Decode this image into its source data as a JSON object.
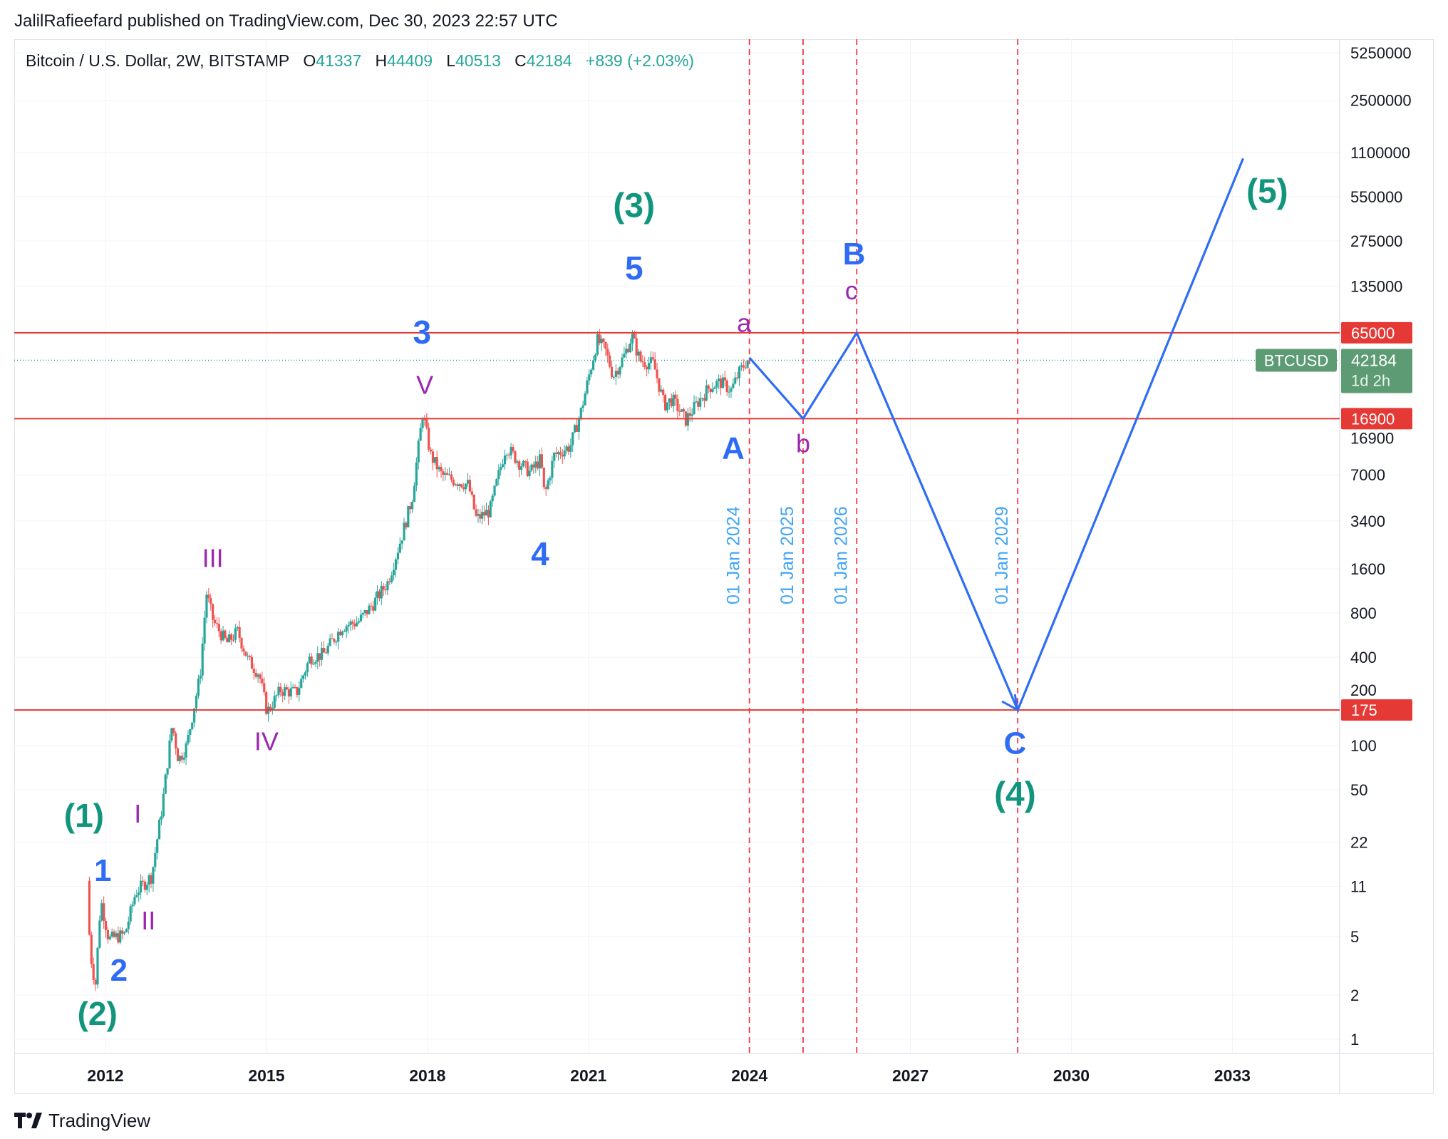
{
  "header": {
    "author_line": "JalilRafieefard published on TradingView.com, Dec 30, 2023 22:57 UTC",
    "symbol": "Bitcoin / U.S. Dollar, 2W, BITSTAMP",
    "open_label": "O",
    "open_value": "41337",
    "high_label": "H",
    "high_value": "44409",
    "low_label": "L",
    "low_value": "40513",
    "close_label": "C",
    "close_value": "42184",
    "change": "+839 (+2.03%)"
  },
  "footer": {
    "brand": "TradingView"
  },
  "colors": {
    "bull": "#26a69a",
    "bear": "#ef5350",
    "blue": "#2f6cf5",
    "green": "#11957d",
    "purple": "#9c27b0",
    "red_line": "#e53935",
    "vline": "#f23645",
    "date_label": "#42a5f5"
  },
  "chart_data": {
    "type": "candlestick",
    "yscale": "log",
    "ylim": [
      0.8,
      6500000
    ],
    "xlim": [
      2010.3,
      2035.0
    ],
    "x_ticks": [
      {
        "x": 2012,
        "label": "2012"
      },
      {
        "x": 2015,
        "label": "2015"
      },
      {
        "x": 2018,
        "label": "2018"
      },
      {
        "x": 2021,
        "label": "2021"
      },
      {
        "x": 2024,
        "label": "2024"
      },
      {
        "x": 2027,
        "label": "2027"
      },
      {
        "x": 2030,
        "label": "2030"
      },
      {
        "x": 2033,
        "label": "2033"
      }
    ],
    "y_ticks": [
      {
        "v": 5250000,
        "label": "5250000"
      },
      {
        "v": 2500000,
        "label": "2500000"
      },
      {
        "v": 1100000,
        "label": "1100000"
      },
      {
        "v": 550000,
        "label": "550000"
      },
      {
        "v": 275000,
        "label": "275000"
      },
      {
        "v": 135000,
        "label": "135000"
      },
      {
        "v": 7000,
        "label": "7000"
      },
      {
        "v": 3400,
        "label": "3400"
      },
      {
        "v": 1600,
        "label": "1600"
      },
      {
        "v": 800,
        "label": "800"
      },
      {
        "v": 400,
        "label": "400"
      },
      {
        "v": 100,
        "label": "100"
      },
      {
        "v": 50,
        "label": "50"
      },
      {
        "v": 22,
        "label": "22"
      },
      {
        "v": 11,
        "label": "11"
      },
      {
        "v": 5,
        "label": "5"
      },
      {
        "v": 2,
        "label": "2"
      },
      {
        "v": 1,
        "label": "1"
      }
    ],
    "price_anchors": [
      [
        2011.7,
        12
      ],
      [
        2011.75,
        4
      ],
      [
        2011.85,
        2.3
      ],
      [
        2011.95,
        9
      ],
      [
        2012.1,
        4.8
      ],
      [
        2012.4,
        5.2
      ],
      [
        2012.6,
        10
      ],
      [
        2012.9,
        13
      ],
      [
        2013.1,
        40
      ],
      [
        2013.28,
        140
      ],
      [
        2013.4,
        80
      ],
      [
        2013.55,
        100
      ],
      [
        2013.8,
        300
      ],
      [
        2013.92,
        1100
      ],
      [
        2014.05,
        700
      ],
      [
        2014.3,
        500
      ],
      [
        2014.5,
        600
      ],
      [
        2014.7,
        380
      ],
      [
        2014.9,
        310
      ],
      [
        2015.05,
        170
      ],
      [
        2015.3,
        240
      ],
      [
        2015.6,
        230
      ],
      [
        2015.85,
        400
      ],
      [
        2016.1,
        420
      ],
      [
        2016.45,
        650
      ],
      [
        2016.75,
        700
      ],
      [
        2017.0,
        900
      ],
      [
        2017.3,
        1300
      ],
      [
        2017.55,
        2600
      ],
      [
        2017.75,
        4800
      ],
      [
        2017.95,
        18500
      ],
      [
        2018.1,
        9500
      ],
      [
        2018.3,
        7000
      ],
      [
        2018.5,
        6500
      ],
      [
        2018.8,
        6000
      ],
      [
        2018.95,
        3500
      ],
      [
        2019.2,
        4000
      ],
      [
        2019.5,
        11000
      ],
      [
        2019.75,
        8500
      ],
      [
        2019.95,
        7300
      ],
      [
        2020.15,
        9000
      ],
      [
        2020.22,
        5000
      ],
      [
        2020.4,
        9500
      ],
      [
        2020.7,
        11000
      ],
      [
        2020.9,
        19000
      ],
      [
        2021.1,
        40000
      ],
      [
        2021.2,
        58000
      ],
      [
        2021.35,
        50000
      ],
      [
        2021.5,
        33000
      ],
      [
        2021.7,
        45000
      ],
      [
        2021.85,
        62000
      ],
      [
        2022.0,
        42000
      ],
      [
        2022.25,
        40000
      ],
      [
        2022.45,
        21000
      ],
      [
        2022.6,
        23000
      ],
      [
        2022.85,
        16500
      ],
      [
        2023.1,
        22500
      ],
      [
        2023.3,
        28000
      ],
      [
        2023.5,
        30000
      ],
      [
        2023.7,
        26500
      ],
      [
        2023.85,
        35000
      ],
      [
        2023.99,
        42184
      ]
    ],
    "horizontal_levels": [
      {
        "value": 65000,
        "label": "65000"
      },
      {
        "value": 16900,
        "label": "16900"
      },
      {
        "value": 175,
        "label": "175"
      }
    ],
    "current_price": {
      "symbol": "BTCUSD",
      "value": "42184",
      "timer": "1d 2h"
    },
    "hidden_axis_labels": [
      {
        "v": 12500,
        "label": "16900"
      },
      {
        "v": 240,
        "label": "200"
      }
    ],
    "vertical_markers": [
      {
        "x": 2024.0,
        "label": "01 Jan 2024"
      },
      {
        "x": 2025.0,
        "label": "01 Jan 2025"
      },
      {
        "x": 2026.0,
        "label": "01 Jan 2026"
      },
      {
        "x": 2029.0,
        "label": "01 Jan 2029"
      }
    ],
    "projection_path": [
      [
        2024.0,
        44000
      ],
      [
        2025.0,
        16900
      ],
      [
        2026.0,
        65000
      ],
      [
        2029.0,
        175
      ],
      [
        2033.2,
        1000000
      ]
    ],
    "wave_labels": [
      {
        "text": "(1)",
        "x": 2011.6,
        "v": 28,
        "color": "green",
        "size": 46
      },
      {
        "text": "1",
        "x": 2011.95,
        "v": 12,
        "color": "blue",
        "size": 44
      },
      {
        "text": "2",
        "x": 2012.25,
        "v": 2.5,
        "color": "blue",
        "size": 44
      },
      {
        "text": "(2)",
        "x": 2011.85,
        "v": 1.25,
        "color": "green",
        "size": 46
      },
      {
        "text": "I",
        "x": 2012.6,
        "v": 30,
        "color": "purple",
        "size": 36
      },
      {
        "text": "II",
        "x": 2012.8,
        "v": 5.6,
        "color": "purple",
        "size": 36
      },
      {
        "text": "III",
        "x": 2014.0,
        "v": 1650,
        "color": "purple",
        "size": 36
      },
      {
        "text": "IV",
        "x": 2015.0,
        "v": 93,
        "color": "purple",
        "size": 36
      },
      {
        "text": "V",
        "x": 2017.95,
        "v": 25000,
        "color": "purple",
        "size": 36
      },
      {
        "text": "3",
        "x": 2017.9,
        "v": 55000,
        "color": "blue",
        "size": 46
      },
      {
        "text": "4",
        "x": 2020.1,
        "v": 1700,
        "color": "blue",
        "size": 46
      },
      {
        "text": "5",
        "x": 2021.85,
        "v": 150000,
        "color": "blue",
        "size": 46
      },
      {
        "text": "(3)",
        "x": 2021.85,
        "v": 400000,
        "color": "green",
        "size": 48
      },
      {
        "text": "A",
        "x": 2023.7,
        "v": 9000,
        "color": "blue",
        "size": 44
      },
      {
        "text": "a",
        "x": 2023.9,
        "v": 66000,
        "color": "purple",
        "size": 36
      },
      {
        "text": "b",
        "x": 2025.0,
        "v": 10000,
        "color": "purple",
        "size": 36
      },
      {
        "text": "c",
        "x": 2025.9,
        "v": 110000,
        "color": "purple",
        "size": 36
      },
      {
        "text": "B",
        "x": 2025.95,
        "v": 190000,
        "color": "blue",
        "size": 44
      },
      {
        "text": "C",
        "x": 2028.95,
        "v": 88,
        "color": "blue",
        "size": 44
      },
      {
        "text": "(4)",
        "x": 2028.95,
        "v": 39,
        "color": "green",
        "size": 48
      },
      {
        "text": "(5)",
        "x": 2033.65,
        "v": 500000,
        "color": "green",
        "size": 48
      }
    ]
  }
}
